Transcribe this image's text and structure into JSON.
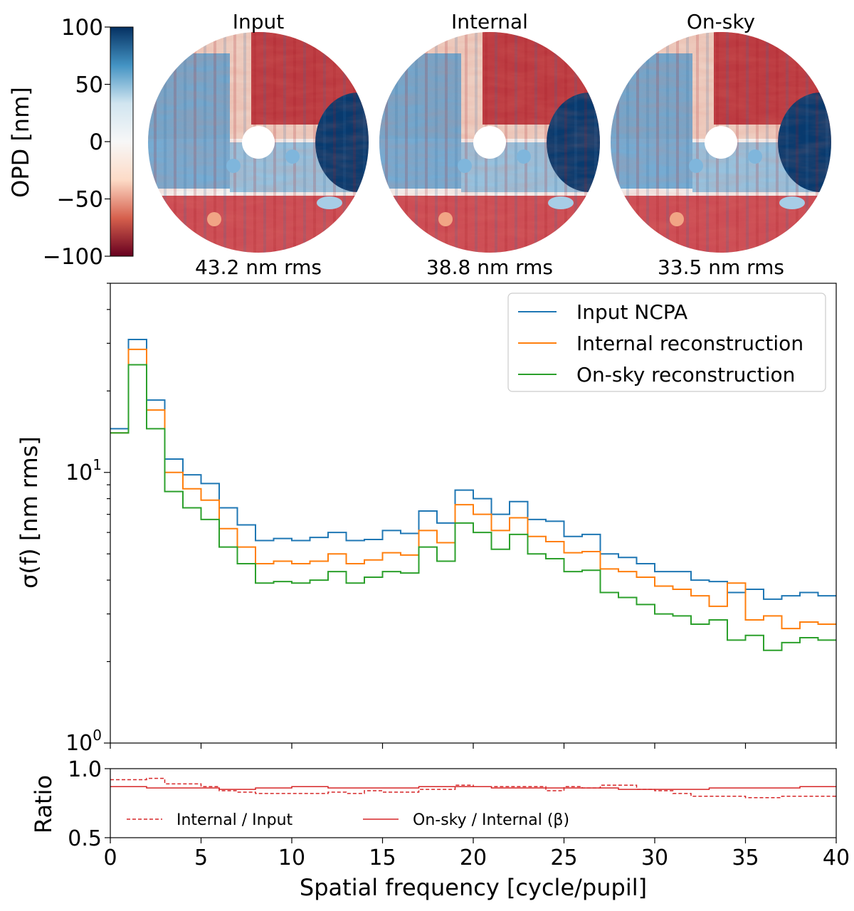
{
  "colormap": {
    "label": "OPD [nm]",
    "ticks": [
      "100",
      "50",
      "0",
      "−50",
      "−100"
    ],
    "tick_values": [
      100,
      50,
      0,
      -50,
      -100
    ],
    "range": [
      -100,
      100
    ],
    "colors": [
      "#67001f",
      "#d6604d",
      "#fddbc7",
      "#f7f7f7",
      "#d1e5f0",
      "#4393c3",
      "#053061"
    ]
  },
  "maps": [
    {
      "title": "Input",
      "rms": "43.2 nm rms"
    },
    {
      "title": "Internal",
      "rms": "38.8 nm rms"
    },
    {
      "title": "On-sky",
      "rms": "33.5 nm rms"
    }
  ],
  "chart_data": [
    {
      "type": "line",
      "drawstyle": "steps",
      "xlabel": "Spatial frequency [cycle/pupil]",
      "ylabel": "σ(f) [nm rms]",
      "yscale": "log",
      "xlim": [
        0,
        40
      ],
      "ylim": [
        1,
        50
      ],
      "ytick_labels": [
        {
          "base": "10",
          "exp": "1",
          "value": 10
        },
        {
          "base": "10",
          "exp": "0",
          "value": 1
        }
      ],
      "legend_position": "top-right",
      "series": [
        {
          "name": "Input NCPA",
          "color": "#1f77b4",
          "values": [
            14.5,
            31,
            18.5,
            11.2,
            9.8,
            9.1,
            7.4,
            6.4,
            5.6,
            5.7,
            5.6,
            5.75,
            6.0,
            5.6,
            5.65,
            6.1,
            5.95,
            7.2,
            6.5,
            8.6,
            8.0,
            7.0,
            7.8,
            6.7,
            6.6,
            5.8,
            5.9,
            5.0,
            4.85,
            4.6,
            4.3,
            4.3,
            4.0,
            3.95,
            3.6,
            3.7,
            3.4,
            3.5,
            3.6,
            3.5
          ]
        },
        {
          "name": "Internal reconstruction",
          "color": "#ff7f0e",
          "values": [
            14.0,
            28.5,
            17.0,
            10.0,
            8.7,
            7.9,
            6.2,
            5.3,
            4.6,
            4.7,
            4.6,
            4.7,
            5.0,
            4.6,
            4.75,
            5.05,
            4.95,
            6.1,
            5.5,
            7.6,
            7.0,
            6.1,
            6.8,
            5.8,
            5.55,
            5.05,
            5.1,
            4.4,
            4.3,
            4.1,
            3.8,
            3.7,
            3.5,
            3.2,
            3.9,
            2.85,
            2.95,
            2.65,
            2.8,
            2.75
          ]
        },
        {
          "name": "On-sky reconstruction",
          "color": "#2ca02c",
          "values": [
            14.0,
            25.0,
            14.5,
            8.5,
            7.4,
            6.7,
            5.3,
            4.6,
            3.9,
            3.95,
            3.9,
            4.0,
            4.3,
            3.9,
            4.1,
            4.3,
            4.25,
            5.3,
            4.7,
            6.5,
            6.0,
            5.2,
            5.9,
            5.0,
            4.8,
            4.3,
            4.35,
            3.6,
            3.45,
            3.25,
            3.0,
            2.95,
            2.75,
            2.85,
            2.4,
            2.5,
            2.2,
            2.35,
            2.45,
            2.4
          ]
        }
      ]
    },
    {
      "type": "line",
      "drawstyle": "steps",
      "ylabel": "Ratio",
      "xlim": [
        0,
        40
      ],
      "ylim": [
        0.5,
        1.0
      ],
      "yticks": [
        "1.0",
        "0.5"
      ],
      "ytick_values": [
        1.0,
        0.5
      ],
      "xticks": [
        "0",
        "5",
        "10",
        "15",
        "20",
        "25",
        "30",
        "35",
        "40"
      ],
      "xtick_values": [
        0,
        5,
        10,
        15,
        20,
        25,
        30,
        35,
        40
      ],
      "legend_position": "bottom",
      "series": [
        {
          "name": "Internal / Input",
          "style": "dashed",
          "color": "#d62728",
          "values": [
            0.92,
            0.92,
            0.93,
            0.89,
            0.89,
            0.87,
            0.84,
            0.83,
            0.82,
            0.82,
            0.82,
            0.82,
            0.83,
            0.82,
            0.84,
            0.83,
            0.83,
            0.85,
            0.85,
            0.88,
            0.87,
            0.87,
            0.87,
            0.87,
            0.84,
            0.87,
            0.86,
            0.88,
            0.88,
            0.85,
            0.84,
            0.82,
            0.8,
            0.8,
            0.8,
            0.79,
            0.79,
            0.8,
            0.8,
            0.8
          ]
        },
        {
          "name": "On-sky / Internal (β)",
          "style": "solid",
          "color": "#d62728",
          "values": [
            0.87,
            0.87,
            0.86,
            0.86,
            0.86,
            0.86,
            0.85,
            0.85,
            0.86,
            0.86,
            0.87,
            0.87,
            0.86,
            0.86,
            0.86,
            0.86,
            0.86,
            0.87,
            0.87,
            0.87,
            0.87,
            0.86,
            0.86,
            0.86,
            0.86,
            0.86,
            0.86,
            0.86,
            0.85,
            0.85,
            0.85,
            0.85,
            0.85,
            0.86,
            0.86,
            0.86,
            0.86,
            0.86,
            0.87,
            0.87
          ]
        }
      ]
    }
  ]
}
